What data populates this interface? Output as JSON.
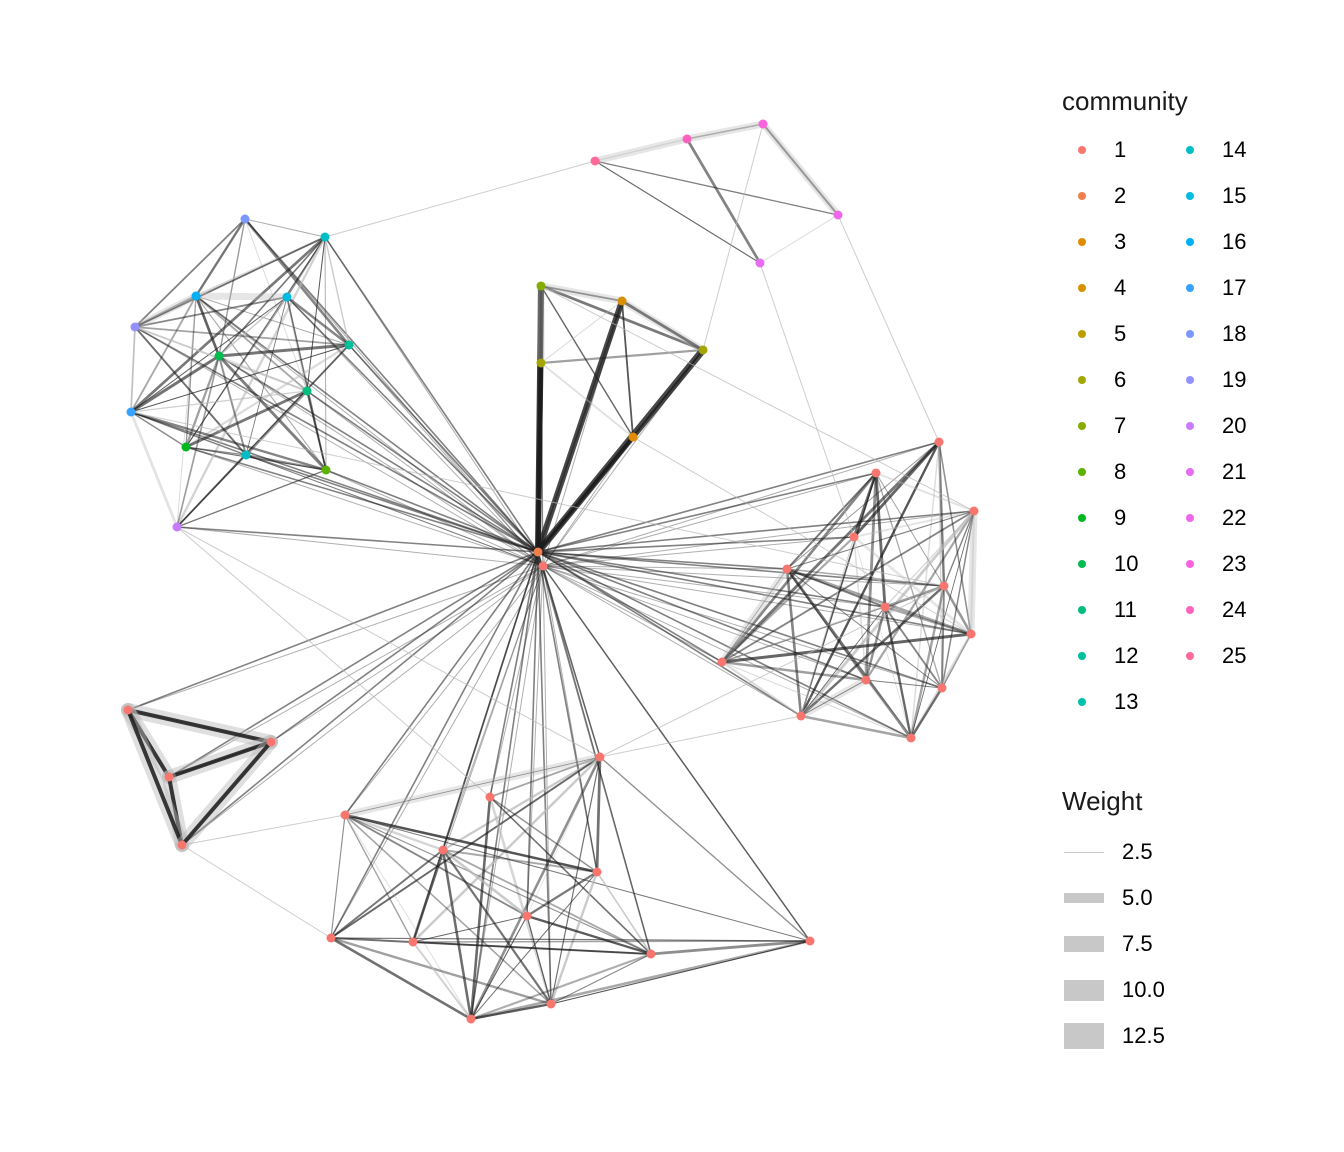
{
  "colors": {
    "edge_dark": "#1a1a1a",
    "edge_light": "#b8b8b8",
    "background": "#ffffff"
  },
  "legend_community": {
    "title": "community",
    "items": [
      {
        "label": "1",
        "color": "#F8766D"
      },
      {
        "label": "2",
        "color": "#EE7F4A"
      },
      {
        "label": "3",
        "color": "#E08B00"
      },
      {
        "label": "4",
        "color": "#D89000"
      },
      {
        "label": "5",
        "color": "#BB9D00"
      },
      {
        "label": "6",
        "color": "#A3A500"
      },
      {
        "label": "7",
        "color": "#85AD00"
      },
      {
        "label": "8",
        "color": "#5BB300"
      },
      {
        "label": "9",
        "color": "#00B81F"
      },
      {
        "label": "10",
        "color": "#00BB4E"
      },
      {
        "label": "11",
        "color": "#00BF7D"
      },
      {
        "label": "12",
        "color": "#00C09B"
      },
      {
        "label": "13",
        "color": "#00C1AA"
      },
      {
        "label": "14",
        "color": "#00BFC4"
      },
      {
        "label": "15",
        "color": "#00BAE0"
      },
      {
        "label": "16",
        "color": "#00B0F6"
      },
      {
        "label": "17",
        "color": "#35A2FF"
      },
      {
        "label": "18",
        "color": "#7997FF"
      },
      {
        "label": "19",
        "color": "#9590FF"
      },
      {
        "label": "20",
        "color": "#C77CFF"
      },
      {
        "label": "21",
        "color": "#E76BF3"
      },
      {
        "label": "22",
        "color": "#F066EA"
      },
      {
        "label": "23",
        "color": "#FA62DB"
      },
      {
        "label": "24",
        "color": "#FF62BC"
      },
      {
        "label": "25",
        "color": "#FF6A98"
      }
    ]
  },
  "legend_weight": {
    "title": "Weight",
    "items": [
      {
        "label": "2.5",
        "value": 2.5
      },
      {
        "label": "5.0",
        "value": 5.0
      },
      {
        "label": "7.5",
        "value": 7.5
      },
      {
        "label": "10.0",
        "value": 10.0
      },
      {
        "label": "12.5",
        "value": 12.5
      }
    ]
  }
}
